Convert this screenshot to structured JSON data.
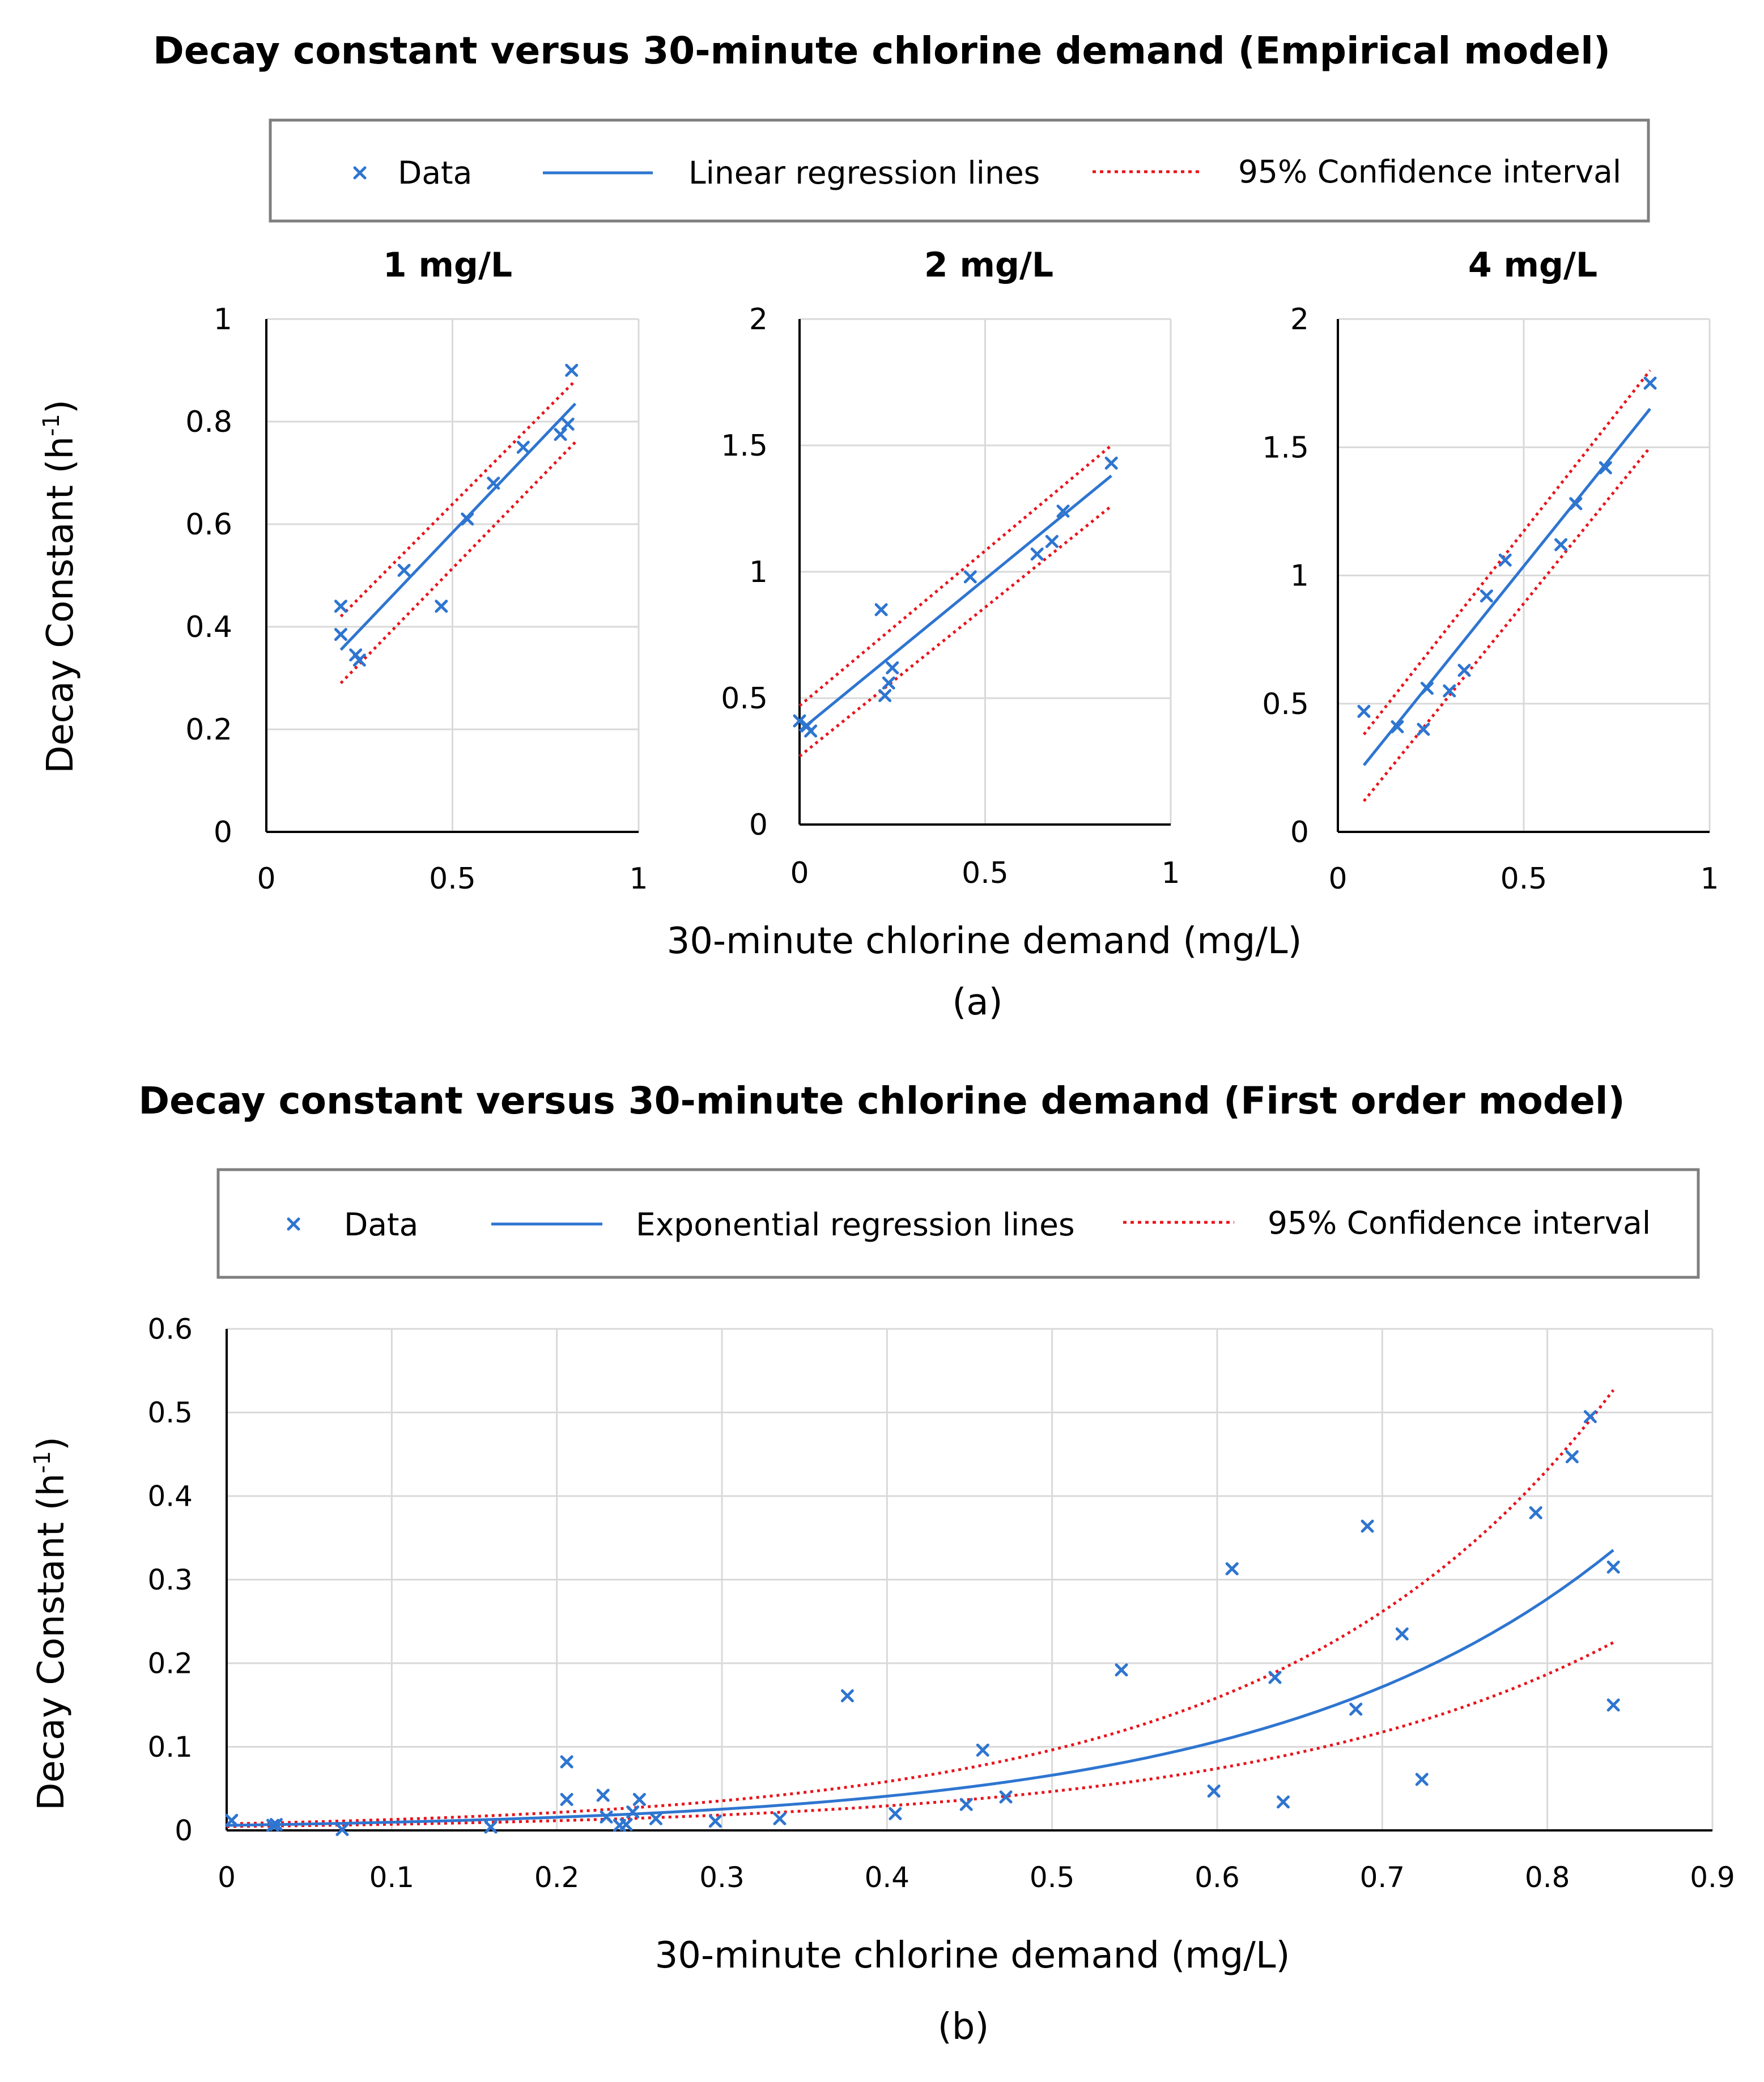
{
  "colors": {
    "data": "#2E75D0",
    "fit": "#2E75D0",
    "ci": "#E8141C",
    "grid": "#D9D9D9",
    "axis": "#000000",
    "legend_border": "#7F7F7F"
  },
  "panel_a": {
    "title": "Decay constant versus 30-minute chlorine demand (Empirical model)",
    "caption": "(a)",
    "ylabel_main": "Decay Constant (h",
    "ylabel_sup": "-1",
    "ylabel_end": ")",
    "xlabel": "30-minute chlorine demand (mg/L)",
    "legend": {
      "data": "Data",
      "fit": "Linear regression lines",
      "ci": "95% Confidence interval"
    }
  },
  "panel_b": {
    "title": "Decay constant versus 30-minute chlorine demand (First order model)",
    "caption": "(b)",
    "ylabel_main": "Decay Constant (h",
    "ylabel_sup": "-1",
    "ylabel_end": ")",
    "xlabel": "30-minute chlorine demand (mg/L)",
    "legend": {
      "data": "Data",
      "fit": "Exponential regression lines",
      "ci": "95% Confidence interval"
    }
  },
  "chart_data": [
    {
      "type": "scatter",
      "title": "1 mg/L",
      "xlim": [
        0,
        1
      ],
      "ylim": [
        0,
        1
      ],
      "xticks": [
        0,
        0.5,
        1
      ],
      "xtick_labels": [
        "0",
        "0.5",
        "1"
      ],
      "yticks": [
        0,
        0.2,
        0.4,
        0.6,
        0.8,
        1
      ],
      "ytick_labels": [
        "0",
        "0.2",
        "0.4",
        "0.6",
        "0.8",
        "1"
      ],
      "points": [
        [
          0.2,
          0.44
        ],
        [
          0.2,
          0.385
        ],
        [
          0.24,
          0.345
        ],
        [
          0.25,
          0.335
        ],
        [
          0.37,
          0.51
        ],
        [
          0.47,
          0.44
        ],
        [
          0.54,
          0.61
        ],
        [
          0.61,
          0.68
        ],
        [
          0.69,
          0.75
        ],
        [
          0.79,
          0.775
        ],
        [
          0.81,
          0.795
        ],
        [
          0.82,
          0.9
        ]
      ],
      "fit": {
        "x": [
          0.2,
          0.83
        ],
        "y": [
          0.355,
          0.835
        ]
      },
      "ci_upper": {
        "x": [
          0.2,
          0.83
        ],
        "y": [
          0.42,
          0.88
        ]
      },
      "ci_lower": {
        "x": [
          0.2,
          0.83
        ],
        "y": [
          0.29,
          0.76
        ]
      }
    },
    {
      "type": "scatter",
      "title": "2 mg/L",
      "xlim": [
        0,
        1
      ],
      "ylim": [
        0,
        2
      ],
      "xticks": [
        0,
        0.5,
        1
      ],
      "xtick_labels": [
        "0",
        "0.5",
        "1"
      ],
      "yticks": [
        0,
        0.5,
        1,
        1.5,
        2
      ],
      "ytick_labels": [
        "0",
        "0.5",
        "1",
        "1.5",
        "2"
      ],
      "points": [
        [
          0.0,
          0.41
        ],
        [
          0.02,
          0.39
        ],
        [
          0.03,
          0.37
        ],
        [
          0.22,
          0.85
        ],
        [
          0.23,
          0.51
        ],
        [
          0.24,
          0.56
        ],
        [
          0.25,
          0.62
        ],
        [
          0.46,
          0.98
        ],
        [
          0.64,
          1.07
        ],
        [
          0.68,
          1.12
        ],
        [
          0.71,
          1.24
        ],
        [
          0.84,
          1.43
        ]
      ],
      "fit": {
        "x": [
          0.0,
          0.84
        ],
        "y": [
          0.37,
          1.38
        ]
      },
      "ci_upper": {
        "x": [
          0.0,
          0.84
        ],
        "y": [
          0.47,
          1.5
        ]
      },
      "ci_lower": {
        "x": [
          0.0,
          0.84
        ],
        "y": [
          0.27,
          1.26
        ]
      }
    },
    {
      "type": "scatter",
      "title": "4 mg/L",
      "xlim": [
        0,
        1
      ],
      "ylim": [
        0,
        2
      ],
      "xticks": [
        0,
        0.5,
        1
      ],
      "xtick_labels": [
        "0",
        "0.5",
        "1"
      ],
      "yticks": [
        0,
        0.5,
        1,
        1.5,
        2
      ],
      "ytick_labels": [
        "0",
        "0.5",
        "1",
        "1.5",
        "2"
      ],
      "points": [
        [
          0.07,
          0.47
        ],
        [
          0.16,
          0.41
        ],
        [
          0.23,
          0.4
        ],
        [
          0.24,
          0.56
        ],
        [
          0.3,
          0.55
        ],
        [
          0.34,
          0.63
        ],
        [
          0.4,
          0.92
        ],
        [
          0.45,
          1.06
        ],
        [
          0.6,
          1.12
        ],
        [
          0.64,
          1.28
        ],
        [
          0.72,
          1.42
        ],
        [
          0.84,
          1.75
        ]
      ],
      "fit": {
        "x": [
          0.07,
          0.84
        ],
        "y": [
          0.26,
          1.65
        ]
      },
      "ci_upper": {
        "x": [
          0.07,
          0.84
        ],
        "y": [
          0.38,
          1.8
        ]
      },
      "ci_lower": {
        "x": [
          0.07,
          0.84
        ],
        "y": [
          0.12,
          1.5
        ]
      }
    },
    {
      "type": "scatter",
      "title": "",
      "xlim": [
        0,
        0.9
      ],
      "ylim": [
        0,
        0.6
      ],
      "xticks": [
        0,
        0.1,
        0.2,
        0.3,
        0.4,
        0.5,
        0.6,
        0.7,
        0.8,
        0.9
      ],
      "xtick_labels": [
        "0",
        "0.1",
        "0.2",
        "0.3",
        "0.4",
        "0.5",
        "0.6",
        "0.7",
        "0.8",
        "0.9"
      ],
      "yticks": [
        0,
        0.1,
        0.2,
        0.3,
        0.4,
        0.5,
        0.6
      ],
      "ytick_labels": [
        "0",
        "0.1",
        "0.2",
        "0.3",
        "0.4",
        "0.5",
        "0.6"
      ],
      "points": [
        [
          0.003,
          0.012
        ],
        [
          0.028,
          0.006
        ],
        [
          0.03,
          0.007
        ],
        [
          0.07,
          0.001
        ],
        [
          0.16,
          0.004
        ],
        [
          0.206,
          0.082
        ],
        [
          0.206,
          0.037
        ],
        [
          0.228,
          0.042
        ],
        [
          0.23,
          0.016
        ],
        [
          0.238,
          0.006
        ],
        [
          0.242,
          0.007
        ],
        [
          0.246,
          0.022
        ],
        [
          0.25,
          0.037
        ],
        [
          0.26,
          0.014
        ],
        [
          0.296,
          0.011
        ],
        [
          0.335,
          0.014
        ],
        [
          0.376,
          0.161
        ],
        [
          0.405,
          0.02
        ],
        [
          0.448,
          0.031
        ],
        [
          0.458,
          0.096
        ],
        [
          0.472,
          0.04
        ],
        [
          0.542,
          0.192
        ],
        [
          0.598,
          0.047
        ],
        [
          0.609,
          0.313
        ],
        [
          0.635,
          0.183
        ],
        [
          0.64,
          0.034
        ],
        [
          0.684,
          0.145
        ],
        [
          0.691,
          0.364
        ],
        [
          0.712,
          0.235
        ],
        [
          0.724,
          0.061
        ],
        [
          0.793,
          0.38
        ],
        [
          0.815,
          0.447
        ],
        [
          0.826,
          0.495
        ],
        [
          0.84,
          0.315
        ],
        [
          0.84,
          0.15
        ]
      ],
      "fit": {
        "type": "exponential",
        "a": 0.00605,
        "b": 4.78,
        "x_range": [
          0,
          0.84
        ]
      },
      "ci_upper": {
        "type": "exponential",
        "a": 0.0079,
        "b": 5.0,
        "x_range": [
          0,
          0.84
        ]
      },
      "ci_lower": {
        "type": "exponential",
        "a": 0.0046,
        "b": 4.63,
        "x_range": [
          0,
          0.84
        ]
      }
    }
  ]
}
